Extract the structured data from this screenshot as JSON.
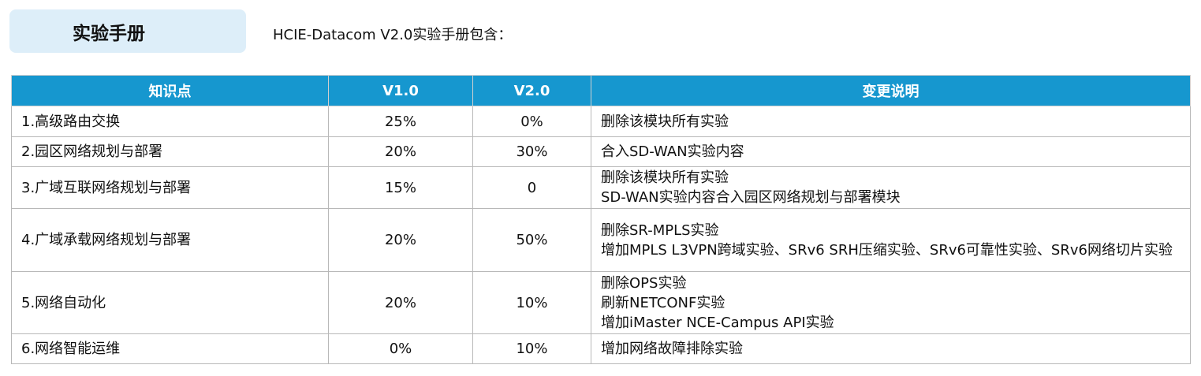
{
  "header": {
    "badge": "实验手册",
    "subtitle": "HCIE-Datacom V2.0实验手册包含："
  },
  "table": {
    "columns": [
      "知识点",
      "V1.0",
      "V2.0",
      "变更说明"
    ],
    "rows": [
      [
        "1.高级路由交换",
        "25%",
        "0%",
        [
          "删除该模块所有实验"
        ]
      ],
      [
        "2.园区网络规划与部署",
        "20%",
        "30%",
        [
          "合入SD-WAN实验内容"
        ]
      ],
      [
        "3.广域互联网络规划与部署",
        "15%",
        "0",
        [
          "删除该模块所有实验",
          "SD-WAN实验内容合入园区网络规划与部署模块"
        ]
      ],
      [
        "4.广域承载网络规划与部署",
        "20%",
        "50%",
        [
          "删除SR-MPLS实验",
          "增加MPLS L3VPN跨域实验、SRv6 SRH压缩实验、SRv6可靠性实验、SRv6网络切片实验"
        ]
      ],
      [
        "5.网络自动化",
        "20%",
        "10%",
        [
          "删除OPS实验",
          "刷新NETCONF实验",
          "增加iMaster NCE-Campus API实验"
        ]
      ],
      [
        "6.网络智能运维",
        "0%",
        "10%",
        [
          "增加网络故障排除实验"
        ]
      ]
    ]
  }
}
